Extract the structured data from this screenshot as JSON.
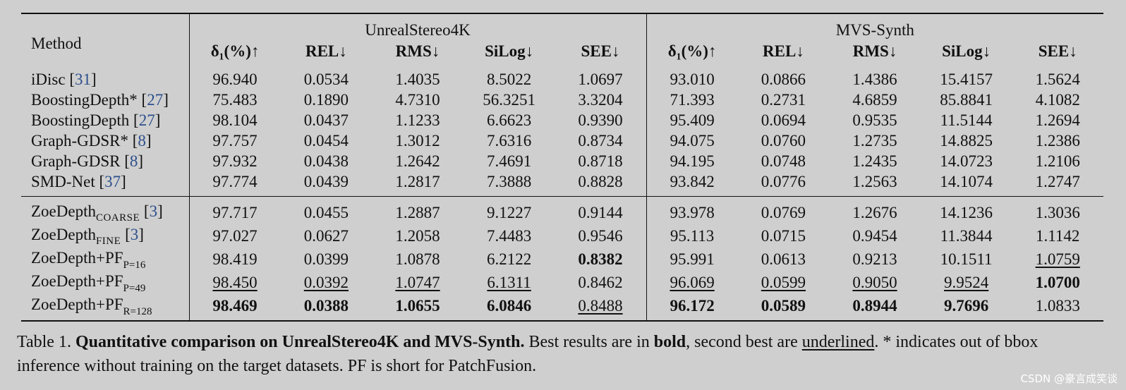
{
  "table": {
    "method_header": "Method",
    "datasets": [
      "UnrealStereo4K",
      "MVS-Synth"
    ],
    "metrics": [
      "δ₁(%)↑",
      "REL↓",
      "RMS↓",
      "SiLog↓",
      "SEE↓"
    ],
    "rows": [
      {
        "name": "iDisc",
        "ref": "31",
        "values": [
          "96.940",
          "0.0534",
          "1.4035",
          "8.5022",
          "1.0697",
          "93.010",
          "0.0866",
          "1.4386",
          "15.4157",
          "1.5624"
        ]
      },
      {
        "name": "BoostingDepth*",
        "ref": "27",
        "values": [
          "75.483",
          "0.1890",
          "4.7310",
          "56.3251",
          "3.3204",
          "71.393",
          "0.2731",
          "4.6859",
          "85.8841",
          "4.1082"
        ]
      },
      {
        "name": "BoostingDepth",
        "ref": "27",
        "values": [
          "98.104",
          "0.0437",
          "1.1233",
          "6.6623",
          "0.9390",
          "95.409",
          "0.0694",
          "0.9535",
          "11.5144",
          "1.2694"
        ]
      },
      {
        "name": "Graph-GDSR*",
        "ref": "8",
        "values": [
          "97.757",
          "0.0454",
          "1.3012",
          "7.6316",
          "0.8734",
          "94.075",
          "0.0760",
          "1.2735",
          "14.8825",
          "1.2386"
        ]
      },
      {
        "name": "Graph-GDSR",
        "ref": "8",
        "values": [
          "97.932",
          "0.0438",
          "1.2642",
          "7.4691",
          "0.8718",
          "94.195",
          "0.0748",
          "1.2435",
          "14.0723",
          "1.2106"
        ]
      },
      {
        "name": "SMD-Net",
        "ref": "37",
        "values": [
          "97.774",
          "0.0439",
          "1.2817",
          "7.3888",
          "0.8828",
          "93.842",
          "0.0776",
          "1.2563",
          "14.1074",
          "1.2747"
        ]
      },
      {
        "name": "ZoeDepth",
        "sub": "COARSE",
        "ref": "3",
        "values": [
          "97.717",
          "0.0455",
          "1.2887",
          "9.1227",
          "0.9144",
          "93.978",
          "0.0769",
          "1.2676",
          "14.1236",
          "1.3036"
        ]
      },
      {
        "name": "ZoeDepth",
        "sub": "FINE",
        "ref": "3",
        "values": [
          "97.027",
          "0.0627",
          "1.2058",
          "7.4483",
          "0.9546",
          "95.113",
          "0.0715",
          "0.9454",
          "11.3844",
          "1.1142"
        ]
      },
      {
        "name": "ZoeDepth+PF",
        "sub": "P=16",
        "values": [
          "98.419",
          "0.0399",
          "1.0878",
          "6.2122",
          "0.8382",
          "95.991",
          "0.0613",
          "0.9213",
          "10.1511",
          "1.0759"
        ]
      },
      {
        "name": "ZoeDepth+PF",
        "sub": "P=49",
        "values": [
          "98.450",
          "0.0392",
          "1.0747",
          "6.1311",
          "0.8462",
          "96.069",
          "0.0599",
          "0.9050",
          "9.9524",
          "1.0700"
        ]
      },
      {
        "name": "ZoeDepth+PF",
        "sub": "R=128",
        "values": [
          "98.469",
          "0.0388",
          "1.0655",
          "6.0846",
          "0.8488",
          "96.172",
          "0.0589",
          "0.8944",
          "9.7696",
          "1.0833"
        ]
      }
    ]
  },
  "caption": {
    "label": "Table 1.",
    "title": "Quantitative comparison on UnrealStereo4K and MVS-Synth.",
    "text1": "Best results are in",
    "bold_word": "bold",
    "text2": ", second best are",
    "underline_word": "underlined",
    "text3": ". * indicates out of bbox inference without training on the target datasets. PF is short for PatchFusion."
  },
  "watermark": "CSDN @豪言成笑谈"
}
